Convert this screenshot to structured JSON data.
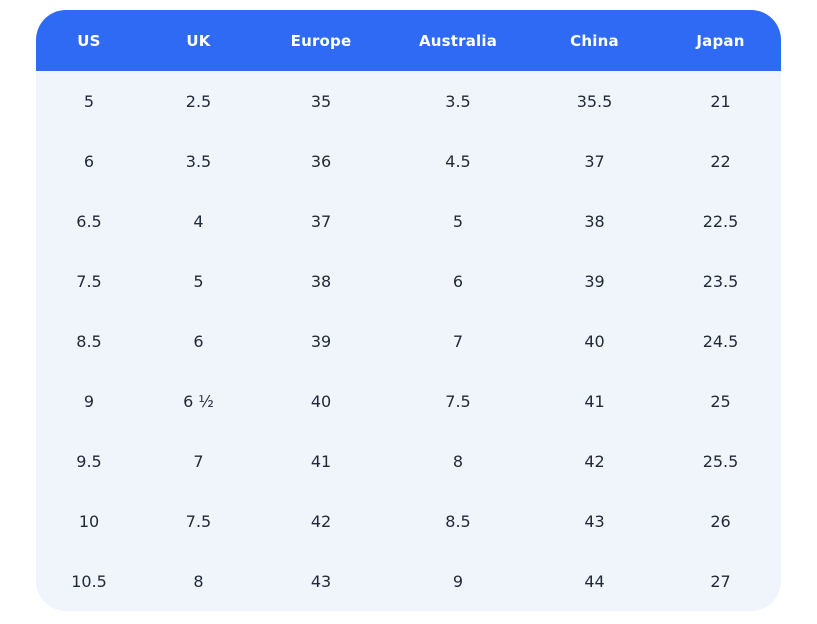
{
  "table": {
    "name": "shoe-size-conversion-table",
    "columns": [
      "US",
      "UK",
      "Europe",
      "Australia",
      "China",
      "Japan"
    ],
    "rows": [
      [
        "5",
        "2.5",
        "35",
        "3.5",
        "35.5",
        "21"
      ],
      [
        "6",
        "3.5",
        "36",
        "4.5",
        "37",
        "22"
      ],
      [
        "6.5",
        "4",
        "37",
        "5",
        "38",
        "22.5"
      ],
      [
        "7.5",
        "5",
        "38",
        "6",
        "39",
        "23.5"
      ],
      [
        "8.5",
        "6",
        "39",
        "7",
        "40",
        "24.5"
      ],
      [
        "9",
        "6 ½",
        "40",
        "7.5",
        "41",
        "25"
      ],
      [
        "9.5",
        "7",
        "41",
        "8",
        "42",
        "25.5"
      ],
      [
        "10",
        "7.5",
        "42",
        "8.5",
        "43",
        "26"
      ],
      [
        "10.5",
        "8",
        "43",
        "9",
        "44",
        "27"
      ]
    ]
  },
  "colors": {
    "header_bg": "#2f6af5",
    "header_text": "#ffffff",
    "body_bg": "#f0f4fb",
    "body_text": "#1f2937"
  }
}
